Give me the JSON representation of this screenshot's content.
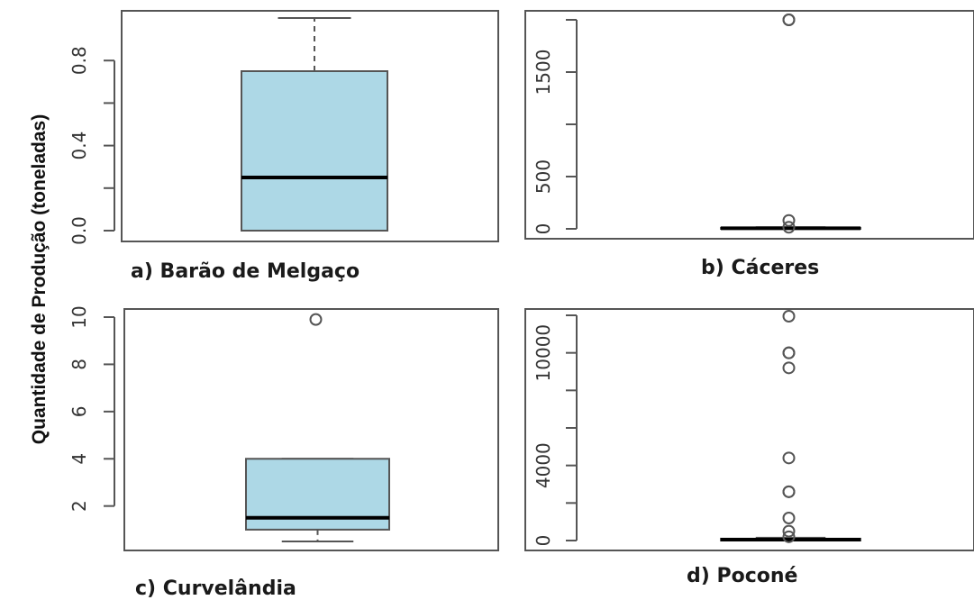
{
  "figure": {
    "ylabel": "Quantidade de Produção (toneladas)"
  },
  "colors": {
    "box_fill": "#add8e6",
    "stroke": "#555555",
    "median": "#000000"
  },
  "chart_data": [
    {
      "type": "boxplot",
      "title": "a) Barão de Melgaço",
      "ylim": [
        0,
        1
      ],
      "yticks": [
        0.0,
        0.4,
        0.8
      ],
      "ytick_labels": [
        "0.0",
        "0.4",
        "0.8"
      ],
      "minor_ticks": [
        0.2,
        0.6
      ],
      "stats": {
        "min": 0.0,
        "q1": 0.0,
        "median": 0.25,
        "q3": 0.75,
        "max": 1.0
      },
      "outliers": []
    },
    {
      "type": "boxplot",
      "title": "b) Cáceres",
      "ylim": [
        0,
        2000
      ],
      "yticks": [
        0,
        500,
        1500
      ],
      "ytick_labels": [
        "0",
        "500",
        "1500"
      ],
      "minor_ticks": [
        1000,
        2000
      ],
      "stats": {
        "min": 0,
        "q1": 0,
        "median": 5,
        "q3": 10,
        "max": 15
      },
      "outliers": [
        2000,
        2000,
        80,
        15
      ]
    },
    {
      "type": "boxplot",
      "title": "c) Curvelândia",
      "ylim": [
        0.5,
        10
      ],
      "yticks": [
        2,
        4,
        6,
        8,
        10
      ],
      "ytick_labels": [
        "2",
        "4",
        "6",
        "8",
        "10"
      ],
      "minor_ticks": [],
      "stats": {
        "min": 0.5,
        "q1": 1.0,
        "median": 1.5,
        "q3": 4.0,
        "max": 4.0
      },
      "outliers": [
        9.9
      ]
    },
    {
      "type": "boxplot",
      "title": "d) Poconé",
      "ylim": [
        0,
        12000
      ],
      "yticks": [
        0,
        4000,
        10000
      ],
      "ytick_labels": [
        "0",
        "4000",
        "10000"
      ],
      "minor_ticks": [
        2000,
        6000,
        8000,
        12000
      ],
      "stats": {
        "min": 0,
        "q1": 0,
        "median": 50,
        "q3": 100,
        "max": 150
      },
      "outliers": [
        13000,
        10000,
        10000,
        9200,
        4400,
        2600,
        2600,
        1200,
        500,
        200
      ]
    }
  ]
}
